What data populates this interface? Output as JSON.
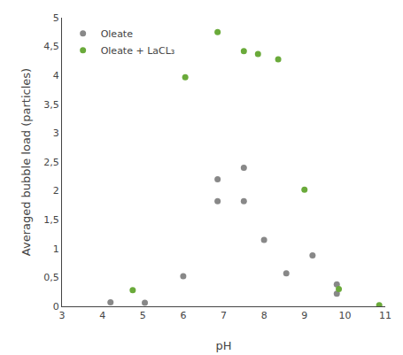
{
  "chart_data": {
    "type": "scatter",
    "xlabel": "pH",
    "ylabel": "Averaged bubble load (particles)",
    "series": [
      {
        "name": "Oleate",
        "color": "#888888",
        "x": [
          4.2,
          5.05,
          6.0,
          6.85,
          6.85,
          7.5,
          7.5,
          8.0,
          8.55,
          9.2,
          9.8,
          9.8
        ],
        "values": [
          0.07,
          0.06,
          0.52,
          2.2,
          1.82,
          2.4,
          1.82,
          1.15,
          0.57,
          0.88,
          0.22,
          0.38
        ]
      },
      {
        "name": "Oleate + LaCL₃",
        "color": "#6aaa3a",
        "x": [
          4.75,
          6.05,
          6.85,
          7.5,
          7.85,
          8.35,
          9.0,
          9.85,
          10.85
        ],
        "values": [
          0.28,
          3.97,
          4.75,
          4.42,
          4.37,
          4.28,
          2.02,
          0.3,
          0.02
        ]
      }
    ],
    "xlim": [
      3,
      11
    ],
    "ylim": [
      0,
      5
    ],
    "xticks": [
      3,
      4,
      5,
      6,
      7,
      8,
      9,
      10,
      11
    ],
    "yticks": [
      0,
      {
        "value": 0.5,
        "label": "0,5"
      },
      1,
      {
        "value": 1.5,
        "label": "1,5"
      },
      2,
      {
        "value": 2.5,
        "label": "2,5"
      },
      3,
      {
        "value": 3.5,
        "label": "3,5"
      },
      4,
      {
        "value": 4.5,
        "label": "4,5"
      },
      5
    ],
    "legend": "upper left",
    "grid": false,
    "marker": "circle"
  }
}
